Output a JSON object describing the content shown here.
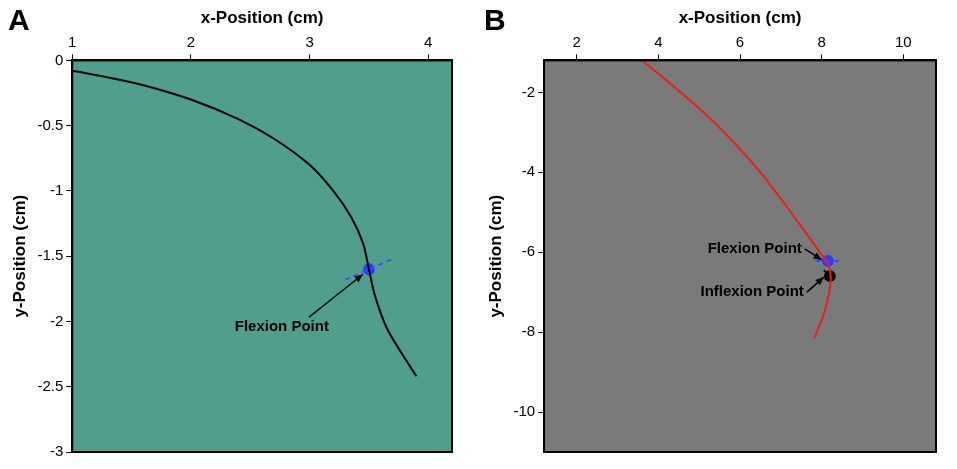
{
  "chart_data": [
    {
      "panel_label": "A",
      "type": "line",
      "x_label": "x-Position (cm)",
      "y_label": "y-Position (cm)",
      "xlim": [
        1,
        4.2
      ],
      "xticks": [
        1,
        2,
        3,
        4
      ],
      "ylim": [
        -3,
        0
      ],
      "yticks": [
        0,
        -0.5,
        -1,
        -1.5,
        -2,
        -2.5,
        -3
      ],
      "grid": false,
      "series": [
        {
          "color": "#000000",
          "line_style": "solid",
          "marker": "none",
          "x": [
            1,
            1.3,
            1.6,
            2,
            2.4,
            2.7,
            3.0,
            3.2,
            3.35,
            3.45,
            3.5,
            3.55,
            3.65,
            3.78,
            3.9
          ],
          "values": [
            -0.08,
            -0.13,
            -0.19,
            -0.3,
            -0.45,
            -0.6,
            -0.8,
            -1.0,
            -1.2,
            -1.4,
            -1.6,
            -1.8,
            -2.05,
            -2.25,
            -2.42
          ]
        },
        {
          "color": "#3a4cff",
          "line_style": "dashed",
          "marker": "none",
          "x": [
            3.3,
            3.7
          ],
          "values": [
            -1.68,
            -1.52
          ]
        },
        {
          "color": "#2a3cff",
          "line_style": "none",
          "marker": "circle",
          "x": [
            3.5
          ],
          "values": [
            -1.6
          ]
        }
      ],
      "annotations": [
        {
          "text": "Flexion Point",
          "x": 3.5,
          "y": -1.6
        }
      ]
    },
    {
      "panel_label": "B",
      "type": "line",
      "x_label": "x-Position (cm)",
      "y_label": "y-Position (cm)",
      "xlim": [
        1.2,
        10.8
      ],
      "xticks": [
        2,
        4,
        6,
        8,
        10
      ],
      "ylim": [
        -11,
        -1.2
      ],
      "yticks": [
        -2,
        -4,
        -6,
        -8,
        -10
      ],
      "grid": false,
      "series": [
        {
          "color": "#e8201a",
          "line_style": "solid",
          "marker": "none",
          "x": [
            3.6,
            4.2,
            5.0,
            5.8,
            6.5,
            7.1,
            7.6,
            7.95,
            8.15,
            8.22,
            8.2,
            8.12,
            8.0,
            7.88,
            7.82
          ],
          "values": [
            -1.2,
            -1.7,
            -2.4,
            -3.2,
            -4.0,
            -4.8,
            -5.5,
            -6.0,
            -6.3,
            -6.6,
            -6.9,
            -7.3,
            -7.7,
            -8.0,
            -8.15
          ]
        },
        {
          "color": "#3a4cff",
          "line_style": "dashed",
          "marker": "none",
          "x": [
            7.85,
            8.5
          ],
          "values": [
            -6.22,
            -6.22
          ]
        },
        {
          "color": "#2a3cff",
          "line_style": "none",
          "marker": "circle",
          "x": [
            8.15
          ],
          "values": [
            -6.22
          ]
        },
        {
          "color": "#000000",
          "line_style": "dashed",
          "marker": "none",
          "x": [
            8.05,
            8.35
          ],
          "values": [
            -6.45,
            -6.75
          ]
        },
        {
          "color": "#000000",
          "line_style": "none",
          "marker": "circle",
          "x": [
            8.2
          ],
          "values": [
            -6.6
          ]
        }
      ],
      "annotations": [
        {
          "text": "Flexion Point",
          "x": 8.15,
          "y": -6.22
        },
        {
          "text": "Inflexion Point",
          "x": 8.2,
          "y": -6.6
        }
      ]
    }
  ]
}
